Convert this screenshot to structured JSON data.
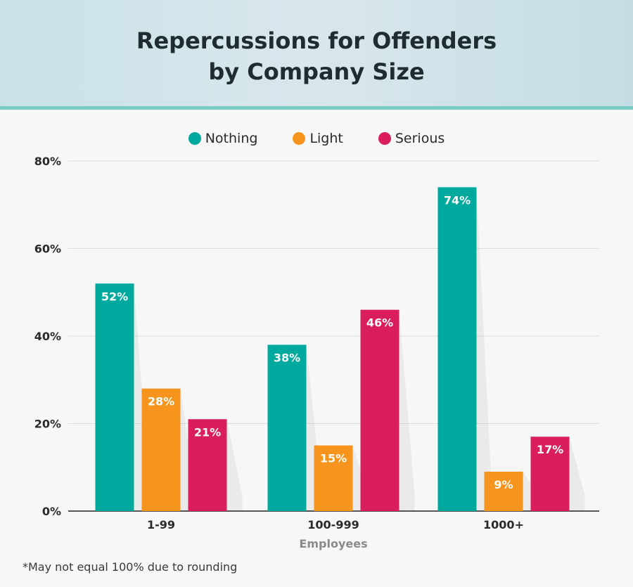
{
  "title_line1": "Repercussions for Offenders",
  "title_line2": "by Company Size",
  "legend": [
    {
      "label": "Nothing",
      "color": "#00a99d"
    },
    {
      "label": "Light",
      "color": "#f7941d"
    },
    {
      "label": "Serious",
      "color": "#d91e5b"
    }
  ],
  "footnote": "*May not equal 100% due to rounding",
  "chart_data": {
    "type": "bar",
    "title": "Repercussions for Offenders by Company Size",
    "xlabel": "Employees",
    "ylabel": "",
    "categories": [
      "1-99",
      "100-999",
      "1000+"
    ],
    "series": [
      {
        "name": "Nothing",
        "color": "#00a99d",
        "values": [
          52,
          38,
          74
        ],
        "labels": [
          "52%",
          "38%",
          "74%"
        ]
      },
      {
        "name": "Light",
        "color": "#f7941d",
        "values": [
          28,
          15,
          9
        ],
        "labels": [
          "28%",
          "15%",
          "9%"
        ]
      },
      {
        "name": "Serious",
        "color": "#d91e5b",
        "values": [
          21,
          46,
          17
        ],
        "labels": [
          "21%",
          "46%",
          "17%"
        ]
      }
    ],
    "ylim": [
      0,
      80
    ],
    "yticks": [
      0,
      20,
      40,
      60,
      80
    ],
    "ytick_labels": [
      "0%",
      "20%",
      "40%",
      "60%",
      "80%"
    ],
    "grid": true,
    "legend_position": "top-center"
  }
}
